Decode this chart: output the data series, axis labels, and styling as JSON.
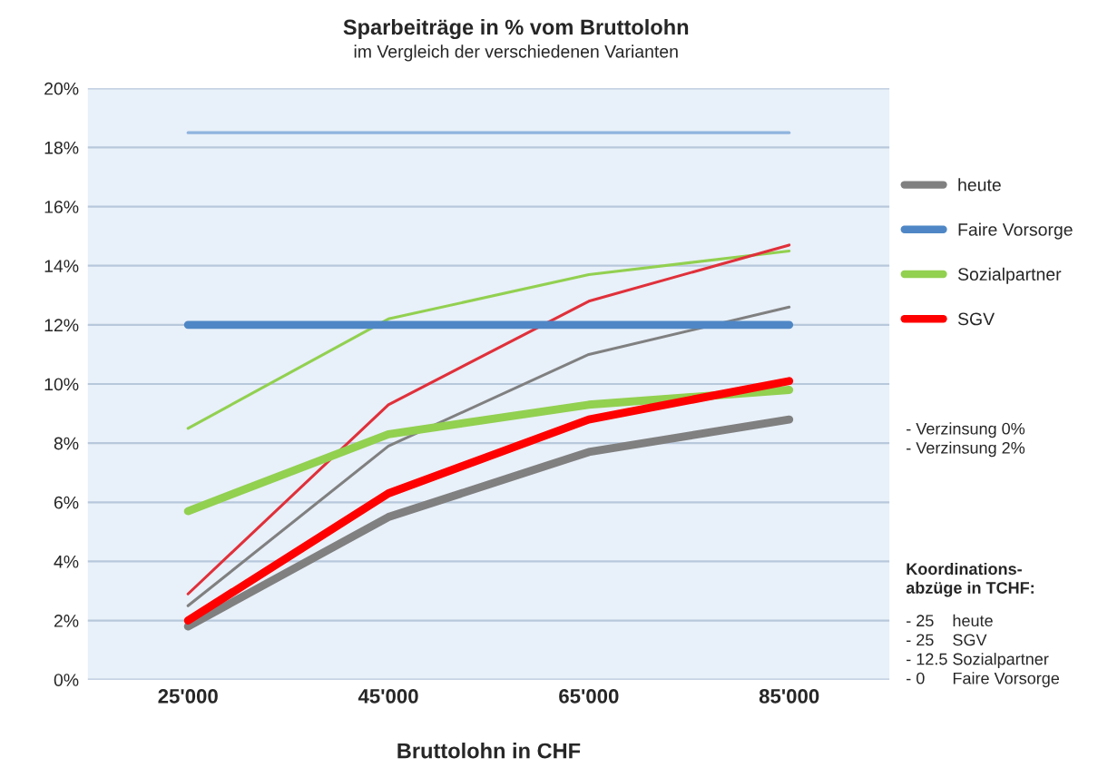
{
  "chart_data": {
    "type": "line",
    "title": "Sparbeiträge in % vom Bruttolohn",
    "subtitle": "im Vergleich der verschiedenen Varianten",
    "xlabel": "Bruttolohn in CHF",
    "categories": [
      "25'000",
      "45'000",
      "65'000",
      "85'000"
    ],
    "series": [
      {
        "name": "heute",
        "color": "#808080",
        "values": [
          1.8,
          5.5,
          7.7,
          8.8
        ]
      },
      {
        "name": "Faire Vorsorge",
        "color": "#4f87c6",
        "values": [
          12,
          12,
          12,
          12
        ]
      },
      {
        "name": "Sozialpartner",
        "color": "#92d050",
        "values": [
          5.7,
          8.3,
          9.3,
          9.8
        ]
      },
      {
        "name": "SGV",
        "color": "#ff0000",
        "values": [
          2.0,
          6.3,
          8.8,
          10.1
        ]
      },
      {
        "color": "#808080",
        "values": [
          2.5,
          7.9,
          11.0,
          12.6
        ]
      },
      {
        "color": "#8fb4de",
        "values": [
          18.5,
          18.5,
          18.5,
          18.5
        ]
      },
      {
        "color": "#92d050",
        "values": [
          8.5,
          12.2,
          13.7,
          14.5
        ]
      },
      {
        "color": "#e0303a",
        "values": [
          2.9,
          9.3,
          12.8,
          14.7
        ]
      }
    ],
    "ylim": [
      0,
      20
    ],
    "yticks": [
      {
        "value": 0,
        "label": "0%"
      },
      {
        "value": 2,
        "label": "2%"
      },
      {
        "value": 4,
        "label": "4%"
      },
      {
        "value": 6,
        "label": "6%"
      },
      {
        "value": 8,
        "label": "8%"
      },
      {
        "value": 10,
        "label": "10%"
      },
      {
        "value": 12,
        "label": "12%"
      },
      {
        "value": 14,
        "label": "14%"
      },
      {
        "value": 16,
        "label": "16%"
      },
      {
        "value": 18,
        "label": "18%"
      },
      {
        "value": 20,
        "label": "20%"
      }
    ],
    "grid": "y",
    "legend": "right",
    "marker": "none",
    "line_style": "solid",
    "annotations": [
      "- Verzinsung 0%",
      "- Verzinsung 2%",
      "Koordinations-\nabzüge in TCHF:",
      "- 25    heute",
      "- 25    SGV",
      "- 12.5 Sozialpartner",
      "- 0      Faire Vorsorge"
    ]
  }
}
